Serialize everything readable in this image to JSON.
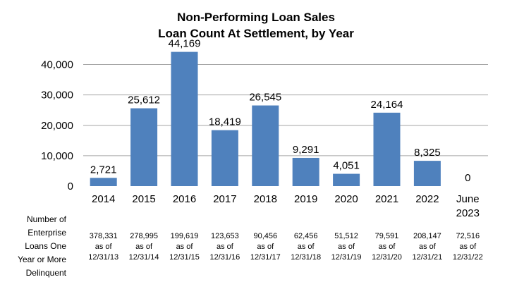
{
  "chart_data": {
    "type": "bar",
    "title": "Non-Performing Loan Sales",
    "subtitle": "Loan Count At Settlement, by Year",
    "categories": [
      [
        "2014"
      ],
      [
        "2015"
      ],
      [
        "2016"
      ],
      [
        "2017"
      ],
      [
        "2018"
      ],
      [
        "2019"
      ],
      [
        "2020"
      ],
      [
        "2021"
      ],
      [
        "2022"
      ],
      [
        "June",
        "2023"
      ]
    ],
    "values": [
      2721,
      25612,
      44169,
      18419,
      26545,
      9291,
      4051,
      24164,
      8325,
      0
    ],
    "data_labels": [
      "2,721",
      "25,612",
      "44,169",
      "18,419",
      "26,545",
      "9,291",
      "4,051",
      "24,164",
      "8,325",
      "0"
    ],
    "ylim": [
      0,
      45000
    ],
    "yticks": [
      0,
      10000,
      20000,
      30000,
      40000
    ],
    "ytick_labels": [
      "0",
      "10,000",
      "20,000",
      "30,000",
      "40,000"
    ],
    "grid": true,
    "bar_color": "#4f81bd",
    "grid_color": "#a6a6a6"
  },
  "delinquent_table": {
    "row_label_lines": [
      "Number of",
      "Enterprise",
      "Loans One",
      "Year or More",
      "Delinquent"
    ],
    "columns": [
      {
        "count": "378,331",
        "as_of": "as of",
        "date": "12/31/13"
      },
      {
        "count": "278,995",
        "as_of": "as of",
        "date": "12/31/14"
      },
      {
        "count": "199,619",
        "as_of": "as of",
        "date": "12/31/15"
      },
      {
        "count": "123,653",
        "as_of": "as of",
        "date": "12/31/16"
      },
      {
        "count": "90,456",
        "as_of": "as of",
        "date": "12/31/17"
      },
      {
        "count": "62,456",
        "as_of": "as of",
        "date": "12/31/18"
      },
      {
        "count": "51,512",
        "as_of": "as of",
        "date": "12/31/19"
      },
      {
        "count": "79,591",
        "as_of": "as of",
        "date": "12/31/20"
      },
      {
        "count": "208,147",
        "as_of": "as of",
        "date": "12/31/21"
      },
      {
        "count": "72,516",
        "as_of": "as of",
        "date": "12/31/22"
      }
    ]
  }
}
